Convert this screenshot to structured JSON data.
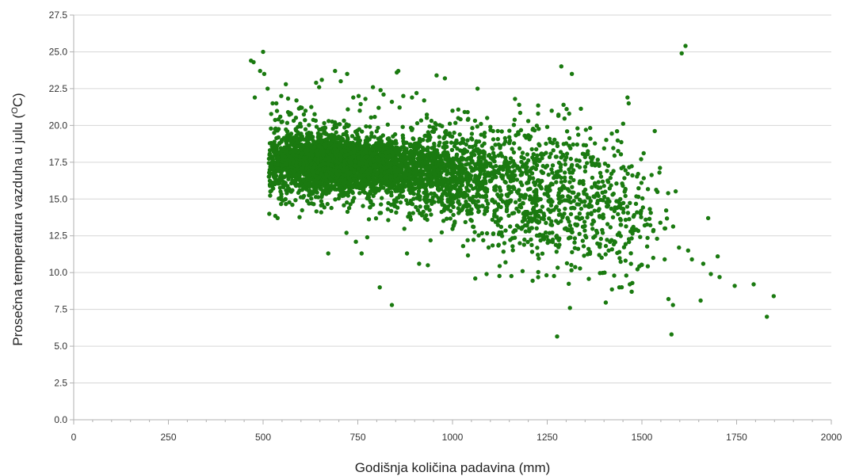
{
  "chart_data": {
    "type": "scatter",
    "xlabel": "Godišnja količina padavina (mm)",
    "ylabel": "Prosečna temperatura vazduha u julu (",
    "ylabel_sup": "O",
    "ylabel_end": "C)",
    "xlim": [
      0,
      2000
    ],
    "ylim": [
      0,
      27.5
    ],
    "x_ticks": [
      "0",
      "250",
      "500",
      "750",
      "1000",
      "1250",
      "1500",
      "1750",
      "2000"
    ],
    "y_ticks": [
      "0.0",
      "2.5",
      "5.0",
      "7.5",
      "10.0",
      "12.5",
      "15.0",
      "17.5",
      "20.0",
      "22.5",
      "25.0",
      "27.5"
    ],
    "grid": "horizontal",
    "legend": "none",
    "colors": {
      "points": "#1a7a10",
      "grid": "#d6d6d6",
      "axis": "#b0b0b0"
    },
    "series": [
      {
        "color": "#1a7a10",
        "x": [
          468,
          475,
          492,
          500,
          503,
          512,
          478,
          525,
          548,
          560,
          566,
          588,
          600,
          612,
          640,
          648,
          655,
          690,
          705,
          722,
          738,
          752,
          770,
          790,
          805,
          810,
          818,
          840,
          853,
          857,
          870,
          893,
          905,
          925,
          958,
          980,
          1000,
          1015,
          1040,
          1075,
          1085,
          1100,
          1122,
          1150,
          1165,
          1176,
          1200,
          1226,
          1250,
          1262,
          1277,
          1293,
          1308,
          1315,
          1330,
          1352,
          1364,
          1380,
          1410,
          1425,
          1440,
          1462,
          1465,
          1470,
          1498,
          1510,
          1530,
          1540,
          1560,
          1570,
          1582,
          1598,
          1605,
          1615,
          1622,
          1632,
          1655,
          1662,
          1675,
          1682,
          1700,
          1705,
          1745,
          1795,
          1830,
          1848,
          1578,
          1560,
          1310,
          1468,
          1473,
          840,
          808,
          760,
          672,
          555,
          1310,
          1185,
          1140,
          1090,
          1060,
          1040,
          1028,
          935,
          912,
          880,
          775,
          745,
          720
        ],
        "y": [
          24.4,
          24.3,
          23.7,
          25.0,
          23.5,
          22.5,
          21.9,
          21.5,
          22.0,
          22.8,
          20.9,
          21.7,
          21.2,
          21.0,
          22.9,
          22.6,
          23.1,
          23.7,
          23.0,
          23.5,
          21.9,
          22.0,
          21.8,
          22.6,
          21.2,
          22.4,
          22.1,
          21.6,
          23.6,
          23.7,
          22.0,
          21.9,
          22.2,
          21.7,
          23.4,
          23.2,
          21.0,
          20.5,
          20.9,
          20.1,
          19.5,
          19.9,
          18.7,
          19.2,
          21.8,
          21.4,
          20.3,
          20.8,
          19.9,
          21.0,
          18.6,
          21.4,
          20.8,
          23.5,
          19.8,
          19.7,
          19.1,
          17.4,
          15.0,
          16.9,
          14.5,
          21.9,
          21.5,
          12.8,
          14.2,
          13.6,
          11.0,
          12.3,
          13.0,
          8.2,
          7.8,
          11.7,
          24.9,
          25.4,
          11.5,
          10.9,
          8.1,
          10.6,
          13.7,
          9.9,
          11.1,
          9.7,
          9.1,
          9.2,
          7.0,
          8.4,
          5.8,
          10.9,
          7.6,
          9.2,
          8.7,
          7.8,
          9.0,
          11.3,
          11.3,
          17.0,
          16.8,
          10.1,
          10.7,
          9.9,
          9.6,
          12.2,
          11.8,
          10.5,
          10.6,
          11.3,
          12.4,
          12.1,
          12.7
        ]
      }
    ],
    "clusters": [
      {
        "n": 1800,
        "cx": 700,
        "cy": 17.4,
        "sx": 85,
        "sy": 0.75
      },
      {
        "n": 1000,
        "cx": 820,
        "cy": 17.1,
        "sx": 110,
        "sy": 1.15
      },
      {
        "n": 700,
        "cx": 620,
        "cy": 17.6,
        "sx": 70,
        "sy": 1.4
      },
      {
        "n": 650,
        "cx": 990,
        "cy": 16.7,
        "sx": 90,
        "sy": 1.5
      },
      {
        "n": 550,
        "cx": 1200,
        "cy": 15.6,
        "sx": 100,
        "sy": 2.2
      },
      {
        "n": 220,
        "cx": 1360,
        "cy": 14.5,
        "sx": 75,
        "sy": 2.6
      },
      {
        "n": 100,
        "cx": 1450,
        "cy": 13.0,
        "sx": 60,
        "sy": 2.0
      }
    ]
  }
}
